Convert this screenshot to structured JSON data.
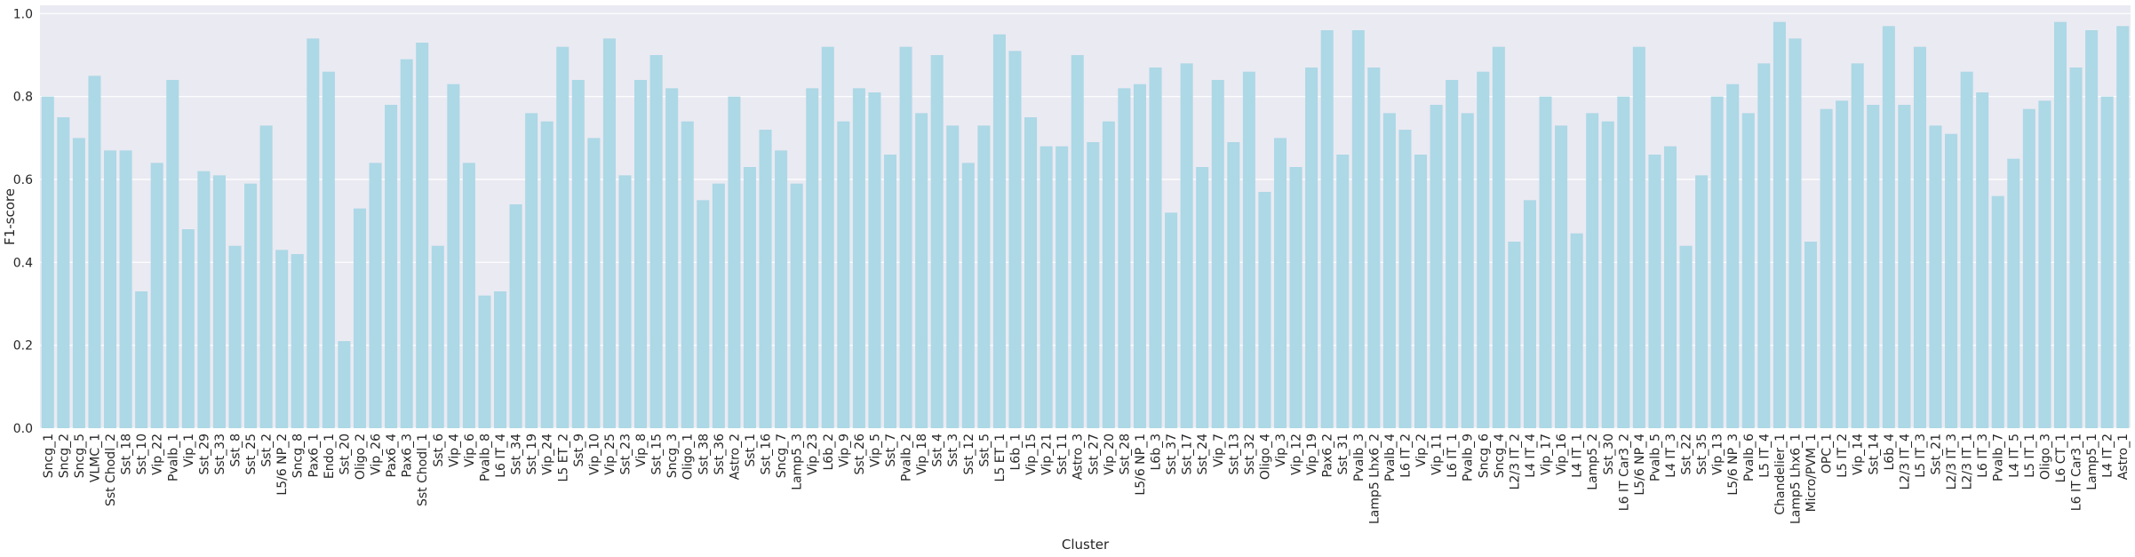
{
  "chart_data": {
    "type": "bar",
    "xlabel": "Cluster",
    "ylabel": "F1-score",
    "ylim": [
      0,
      1.02
    ],
    "yticks": [
      0.0,
      0.2,
      0.4,
      0.6,
      0.8,
      1.0
    ],
    "ytick_labels": [
      "0.0",
      "0.2",
      "0.4",
      "0.6",
      "0.8",
      "1.0"
    ],
    "grid": true,
    "bar_color": "#add8e6",
    "background_color": "#eaeaf2",
    "grid_color": "#ffffff",
    "categories": [
      "Sncg_1",
      "Sncg_2",
      "Sncg_5",
      "VLMC_1",
      "Sst Chodl_2",
      "Sst_18",
      "Sst_10",
      "Vip_22",
      "Pvalb_1",
      "Vip_1",
      "Sst_29",
      "Sst_33",
      "Sst_8",
      "Sst_25",
      "Sst_2",
      "L5/6 NP_2",
      "Sncg_8",
      "Pax6_1",
      "Endo_1",
      "Sst_20",
      "Oligo_2",
      "Vip_26",
      "Pax6_4",
      "Pax6_3",
      "Sst Chodl_1",
      "Sst_6",
      "Vip_4",
      "Vip_6",
      "Pvalb_8",
      "L6 IT_4",
      "Sst_34",
      "Sst_19",
      "Vip_24",
      "L5 ET_2",
      "Sst_9",
      "Vip_10",
      "Vip_25",
      "Sst_23",
      "Vip_8",
      "Sst_15",
      "Sncg_3",
      "Oligo_1",
      "Sst_38",
      "Sst_36",
      "Astro_2",
      "Sst_1",
      "Sst_16",
      "Sncg_7",
      "Lamp5_3",
      "Vip_23",
      "L6b_2",
      "Vip_9",
      "Sst_26",
      "Vip_5",
      "Sst_7",
      "Pvalb_2",
      "Vip_18",
      "Sst_4",
      "Sst_3",
      "Sst_12",
      "Sst_5",
      "L5 ET_1",
      "L6b_1",
      "Vip_15",
      "Vip_21",
      "Sst_11",
      "Astro_3",
      "Sst_27",
      "Vip_20",
      "Sst_28",
      "L5/6 NP_1",
      "L6b_3",
      "Sst_37",
      "Sst_17",
      "Sst_24",
      "Vip_7",
      "Sst_13",
      "Sst_32",
      "Oligo_4",
      "Vip_3",
      "Vip_12",
      "Vip_19",
      "Pax6_2",
      "Sst_31",
      "Pvalb_3",
      "Lamp5 Lhx6_2",
      "Pvalb_4",
      "L6 IT_2",
      "Vip_2",
      "Vip_11",
      "L6 IT_1",
      "Pvalb_9",
      "Sncg_6",
      "Sncg_4",
      "L2/3 IT_2",
      "L4 IT_4",
      "Vip_17",
      "Vip_16",
      "L4 IT_1",
      "Lamp5_2",
      "Sst_30",
      "L6 IT Car3_2",
      "L5/6 NP_4",
      "Pvalb_5",
      "L4 IT_3",
      "Sst_22",
      "Sst_35",
      "Vip_13",
      "L5/6 NP_3",
      "Pvalb_6",
      "L5 IT_4",
      "Chandelier_1",
      "Lamp5 Lhx6_1",
      "Micro/PVM_1",
      "OPC_1",
      "L5 IT_2",
      "Vip_14",
      "Sst_14",
      "L6b_4",
      "L2/3 IT_4",
      "L5 IT_3",
      "Sst_21",
      "L2/3 IT_3",
      "L2/3 IT_1",
      "L6 IT_3",
      "Pvalb_7",
      "L4 IT_5",
      "L5 IT_1",
      "Oligo_3",
      "L6 CT_1",
      "L6 IT Car3_1",
      "Lamp5_1",
      "L4 IT_2",
      "Astro_1"
    ],
    "values": [
      0.8,
      0.75,
      0.7,
      0.85,
      0.67,
      0.67,
      0.33,
      0.64,
      0.84,
      0.48,
      0.62,
      0.61,
      0.44,
      0.59,
      0.73,
      0.43,
      0.42,
      0.94,
      0.86,
      0.21,
      0.53,
      0.64,
      0.78,
      0.89,
      0.93,
      0.44,
      0.83,
      0.64,
      0.32,
      0.33,
      0.54,
      0.76,
      0.74,
      0.92,
      0.84,
      0.7,
      0.94,
      0.61,
      0.84,
      0.9,
      0.82,
      0.74,
      0.55,
      0.59,
      0.8,
      0.63,
      0.72,
      0.67,
      0.59,
      0.82,
      0.92,
      0.74,
      0.82,
      0.81,
      0.66,
      0.92,
      0.76,
      0.9,
      0.73,
      0.64,
      0.73,
      0.95,
      0.91,
      0.75,
      0.68,
      0.68,
      0.9,
      0.69,
      0.74,
      0.82,
      0.83,
      0.87,
      0.52,
      0.88,
      0.63,
      0.84,
      0.69,
      0.86,
      0.57,
      0.7,
      0.63,
      0.87,
      0.96,
      0.66,
      0.96,
      0.87,
      0.76,
      0.72,
      0.66,
      0.78,
      0.84,
      0.76,
      0.86,
      0.92,
      0.45,
      0.55,
      0.8,
      0.73,
      0.47,
      0.76,
      0.74,
      0.8,
      0.92,
      0.66,
      0.68,
      0.44,
      0.61,
      0.8,
      0.83,
      0.76,
      0.88,
      0.98,
      0.94,
      0.45,
      0.77,
      0.79,
      0.88,
      0.78,
      0.97,
      0.78,
      0.92,
      0.73,
      0.71,
      0.86,
      0.81,
      0.56,
      0.65,
      0.77,
      0.79,
      0.98,
      0.87,
      0.96,
      0.8,
      0.97
    ]
  }
}
